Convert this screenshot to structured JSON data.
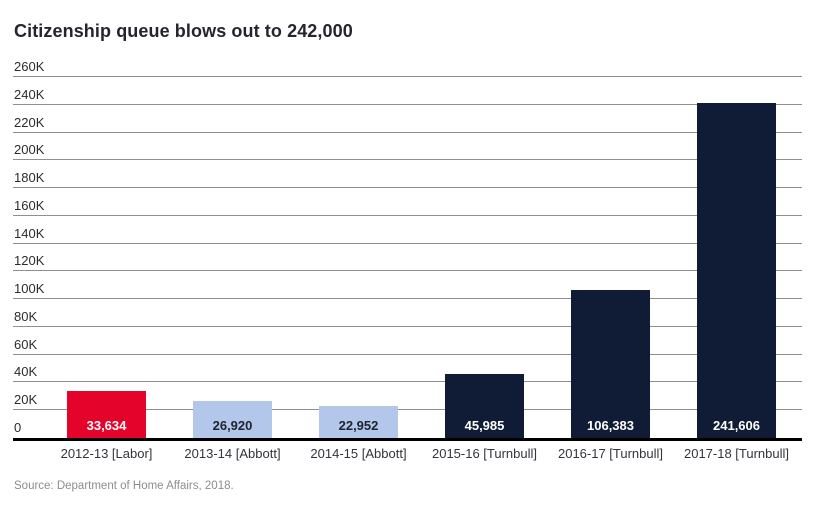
{
  "header": {
    "title": "Citizenship queue blows out to 242,000"
  },
  "footer": {
    "source": "Source: Department of Home Affairs, 2018."
  },
  "chart_data": {
    "type": "bar",
    "title": "Citizenship queue blows out to 242,000",
    "categories": [
      "2012-13 [Labor]",
      "2013-14 [Abbott]",
      "2014-15 [Abbott]",
      "2015-16 [Turnbull]",
      "2016-17 [Turnbull]",
      "2017-18 [Turnbull]"
    ],
    "values": [
      33634,
      26920,
      22952,
      45985,
      106383,
      241606
    ],
    "value_labels": [
      "33,634",
      "26,920",
      "22,952",
      "45,985",
      "106,383",
      "241,606"
    ],
    "bar_colors": [
      "#e4032b",
      "#b3c7ea",
      "#b3c7ea",
      "#101b35",
      "#101b35",
      "#101b35"
    ],
    "value_label_colors": [
      "#ffffff",
      "#20242e",
      "#20242e",
      "#ffffff",
      "#ffffff",
      "#ffffff"
    ],
    "xlabel": "",
    "ylabel": "",
    "ylim": [
      0,
      260000
    ],
    "ytick_step": 20000,
    "ytick_labels": [
      "0",
      "20K",
      "40K",
      "60K",
      "80K",
      "100K",
      "120K",
      "140K",
      "160K",
      "180K",
      "200K",
      "220K",
      "240K",
      "260K"
    ],
    "grid": true,
    "legend": false,
    "source": "Source: Department of Home Affairs, 2018.",
    "colors": {
      "grid": "#8f8f8f",
      "axis": "#000000",
      "title": "#25252e",
      "ticks": "#2b2b30",
      "category_labels": "#33343c",
      "source": "#8d8d8d",
      "background": "#ffffff"
    }
  }
}
